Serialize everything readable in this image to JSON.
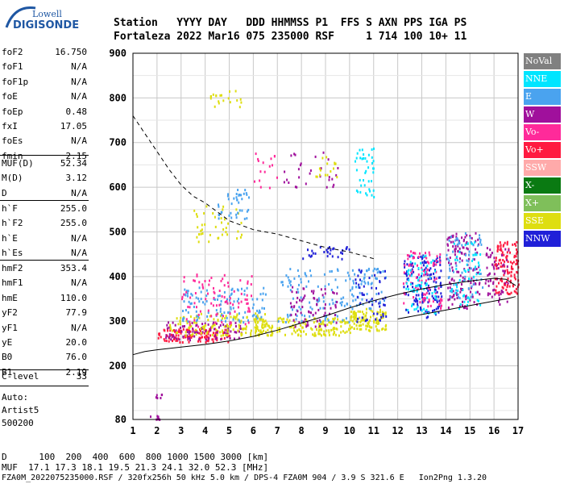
{
  "logo": {
    "top": "Lowell",
    "bottom": "DIGISONDE"
  },
  "header": {
    "line1": "Station   YYYY DAY   DDD HHMMSS P1  FFS S AXN PPS IGA PS",
    "line2": "Fortaleza 2022 Mar16 075 235000 RSF     1 714 100 10+ 11"
  },
  "params_group1": [
    {
      "name": "foF2",
      "value": "16.750"
    },
    {
      "name": "foF1",
      "value": "N/A"
    },
    {
      "name": "foF1p",
      "value": "N/A"
    },
    {
      "name": "foE",
      "value": "N/A"
    },
    {
      "name": "foEp",
      "value": "0.48"
    },
    {
      "name": "fxI",
      "value": "17.05"
    },
    {
      "name": "foEs",
      "value": "N/A"
    },
    {
      "name": "fmin",
      "value": "2.15"
    }
  ],
  "params_group2": [
    {
      "name": "MUF(D)",
      "value": "52.34"
    },
    {
      "name": "M(D)",
      "value": "3.12"
    },
    {
      "name": "D",
      "value": "N/A"
    }
  ],
  "params_group3": [
    {
      "name": "h`F",
      "value": "255.0"
    },
    {
      "name": "h`F2",
      "value": "255.0"
    },
    {
      "name": "h`E",
      "value": "N/A"
    },
    {
      "name": "h`Es",
      "value": "N/A"
    }
  ],
  "params_group4": [
    {
      "name": "hmF2",
      "value": "353.4"
    },
    {
      "name": "hmF1",
      "value": "N/A"
    },
    {
      "name": "hmE",
      "value": "110.0"
    },
    {
      "name": "yF2",
      "value": "77.9"
    },
    {
      "name": "yF1",
      "value": "N/A"
    },
    {
      "name": "yE",
      "value": "20.0"
    },
    {
      "name": "B0",
      "value": "76.0"
    },
    {
      "name": "B1",
      "value": "2.19"
    }
  ],
  "clevel": {
    "name": "C-level",
    "value": "33"
  },
  "auto": {
    "l1": "Auto:",
    "l2": "Artist5",
    "l3": "500200"
  },
  "legend": [
    {
      "label": "NoVal",
      "color": "#808080"
    },
    {
      "label": "NNE",
      "color": "#00e5ff"
    },
    {
      "label": "E",
      "color": "#4aa3ef"
    },
    {
      "label": "W",
      "color": "#a0109c"
    },
    {
      "label": "Vo-",
      "color": "#ff2a9a"
    },
    {
      "label": "Vo+",
      "color": "#ff1a40"
    },
    {
      "label": "SSW",
      "color": "#ffaaaa"
    },
    {
      "label": "X-",
      "color": "#0a7a12"
    },
    {
      "label": "X+",
      "color": "#7fbf5a"
    },
    {
      "label": "SSE",
      "color": "#dede10"
    },
    {
      "label": "NNW",
      "color": "#2020d8"
    }
  ],
  "footer": {
    "l1": "D      100  200  400  600  800 1000 1500 3000 [km]",
    "l2": "MUF  17.1 17.3 18.1 19.5 21.3 24.1 32.0 52.3 [MHz]",
    "l3": "FZA0M_2022075235000.RSF / 320fx256h 50 kHz 5.0 km / DPS-4 FZA0M 904 / 3.9 S 321.6 E   Ion2Png 1.3.20"
  },
  "chart_data": {
    "type": "scatter",
    "xlim": [
      1,
      17
    ],
    "ylim": [
      80,
      900
    ],
    "x_ticks": [
      1,
      2,
      3,
      4,
      5,
      6,
      7,
      8,
      9,
      10,
      11,
      12,
      13,
      14,
      15,
      16,
      17
    ],
    "y_ticks": [
      80,
      200,
      300,
      400,
      500,
      600,
      700,
      800,
      900
    ],
    "grid": true,
    "legend_position": "right",
    "clusters": [
      {
        "x": [
          1.6,
          2.2
        ],
        "y": [
          80,
          90
        ],
        "color": "#a0109c",
        "n": 8
      },
      {
        "x": [
          1.9,
          2.2
        ],
        "y": [
          125,
          140
        ],
        "color": "#a0109c",
        "n": 6
      },
      {
        "x": [
          2.0,
          5.0
        ],
        "y": [
          255,
          285
        ],
        "color": "#ff1a40",
        "n": 120
      },
      {
        "x": [
          2.3,
          5.5
        ],
        "y": [
          260,
          300
        ],
        "color": "#a0109c",
        "n": 90
      },
      {
        "x": [
          2.5,
          6.5
        ],
        "y": [
          270,
          320
        ],
        "color": "#dede10",
        "n": 140
      },
      {
        "x": [
          3.0,
          6.5
        ],
        "y": [
          300,
          380
        ],
        "color": "#4aa3ef",
        "n": 110
      },
      {
        "x": [
          3.0,
          6.0
        ],
        "y": [
          290,
          410
        ],
        "color": "#ff2a9a",
        "n": 90
      },
      {
        "x": [
          6.0,
          10.0
        ],
        "y": [
          270,
          310
        ],
        "color": "#dede10",
        "n": 160
      },
      {
        "x": [
          7.0,
          10.0
        ],
        "y": [
          300,
          420
        ],
        "color": "#4aa3ef",
        "n": 100
      },
      {
        "x": [
          7.5,
          9.5
        ],
        "y": [
          290,
          380
        ],
        "color": "#a0109c",
        "n": 70
      },
      {
        "x": [
          8.0,
          10.0
        ],
        "y": [
          440,
          470
        ],
        "color": "#2020d8",
        "n": 30
      },
      {
        "x": [
          10.0,
          11.5
        ],
        "y": [
          280,
          330
        ],
        "color": "#dede10",
        "n": 110
      },
      {
        "x": [
          10.0,
          11.5
        ],
        "y": [
          330,
          420
        ],
        "color": "#4aa3ef",
        "n": 60
      },
      {
        "x": [
          10.2,
          11.5
        ],
        "y": [
          300,
          420
        ],
        "color": "#2020d8",
        "n": 50
      },
      {
        "x": [
          10.2,
          11.0
        ],
        "y": [
          580,
          690
        ],
        "color": "#00e5ff",
        "n": 40
      },
      {
        "x": [
          12.2,
          13.8
        ],
        "y": [
          310,
          450
        ],
        "color": "#2020d8",
        "n": 140
      },
      {
        "x": [
          12.2,
          13.8
        ],
        "y": [
          330,
          460
        ],
        "color": "#ff2a9a",
        "n": 90
      },
      {
        "x": [
          12.3,
          13.6
        ],
        "y": [
          320,
          450
        ],
        "color": "#00e5ff",
        "n": 60
      },
      {
        "x": [
          14.0,
          15.4
        ],
        "y": [
          330,
          500
        ],
        "color": "#a0109c",
        "n": 140
      },
      {
        "x": [
          14.0,
          15.5
        ],
        "y": [
          350,
          500
        ],
        "color": "#4aa3ef",
        "n": 70
      },
      {
        "x": [
          14.2,
          15.4
        ],
        "y": [
          330,
          480
        ],
        "color": "#00e5ff",
        "n": 50
      },
      {
        "x": [
          16.0,
          17.0
        ],
        "y": [
          360,
          480
        ],
        "color": "#ff1a40",
        "n": 120
      },
      {
        "x": [
          15.6,
          16.6
        ],
        "y": [
          340,
          470
        ],
        "color": "#a0109c",
        "n": 60
      },
      {
        "x": [
          3.5,
          5.5
        ],
        "y": [
          480,
          560
        ],
        "color": "#dede10",
        "n": 40
      },
      {
        "x": [
          4.5,
          5.8
        ],
        "y": [
          530,
          600
        ],
        "color": "#4aa3ef",
        "n": 40
      },
      {
        "x": [
          4.2,
          5.5
        ],
        "y": [
          780,
          820
        ],
        "color": "#dede10",
        "n": 20
      },
      {
        "x": [
          6.0,
          7.0
        ],
        "y": [
          600,
          680
        ],
        "color": "#ff2a9a",
        "n": 16
      },
      {
        "x": [
          7.2,
          9.5
        ],
        "y": [
          600,
          680
        ],
        "color": "#a0109c",
        "n": 30
      },
      {
        "x": [
          8.5,
          9.5
        ],
        "y": [
          620,
          670
        ],
        "color": "#dede10",
        "n": 16
      }
    ],
    "dashed_curve": {
      "x": [
        1,
        1.5,
        2,
        2.5,
        3,
        3.5,
        4,
        4.5,
        5,
        5.5,
        6,
        7,
        8,
        9,
        10,
        11
      ],
      "y": [
        760,
        720,
        680,
        640,
        605,
        580,
        565,
        545,
        525,
        515,
        505,
        495,
        480,
        465,
        455,
        440
      ]
    },
    "solid_curve": {
      "x": [
        1,
        1.5,
        2,
        3,
        4,
        5,
        6,
        7,
        8,
        9,
        10,
        11,
        12,
        13,
        14,
        15,
        16,
        16.5,
        16.9
      ],
      "y": [
        225,
        232,
        236,
        242,
        248,
        256,
        266,
        280,
        296,
        312,
        330,
        346,
        360,
        372,
        382,
        390,
        396,
        394,
        380
      ]
    },
    "lower_curve": {
      "x": [
        12,
        13,
        14,
        15,
        16,
        16.5,
        16.9
      ],
      "y": [
        305,
        315,
        325,
        335,
        345,
        350,
        355
      ]
    }
  }
}
